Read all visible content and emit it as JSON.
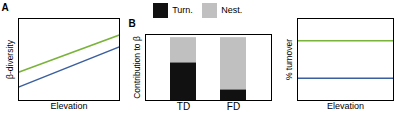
{
  "chart_data": [
    {
      "type": "line",
      "title": "A",
      "xlabel": "Elevation",
      "ylabel": "β-diversity",
      "x": [
        0,
        1
      ],
      "xlim": [
        0,
        1
      ],
      "ylim": [
        0,
        1.1
      ],
      "tick_labels": false,
      "series": [
        {
          "color": "#7ab33a",
          "values": [
            0.38,
            0.88
          ]
        },
        {
          "color": "#3a5fa0",
          "values": [
            0.18,
            0.72
          ]
        }
      ]
    },
    {
      "type": "bar",
      "title": "B",
      "ylabel": "Contribution to β",
      "categories": [
        "TD",
        "FD"
      ],
      "stacked": true,
      "ylim": [
        0,
        1.05
      ],
      "tick_labels": "x",
      "legend": "top",
      "series": [
        {
          "name": "Turn.",
          "color": "#111111",
          "values": [
            0.6,
            0.17
          ]
        },
        {
          "name": "Nest.",
          "color": "#c0c0c0",
          "values": [
            0.4,
            0.83
          ]
        }
      ]
    },
    {
      "type": "hline",
      "xlabel": "Elevation",
      "ylabel": "% turnover",
      "xlim": [
        0,
        1
      ],
      "ylim": [
        0,
        1.0
      ],
      "tick_labels": false,
      "values": [
        0.73,
        0.27
      ],
      "colors": [
        "#7ab33a",
        "#3a5fa0"
      ]
    }
  ]
}
